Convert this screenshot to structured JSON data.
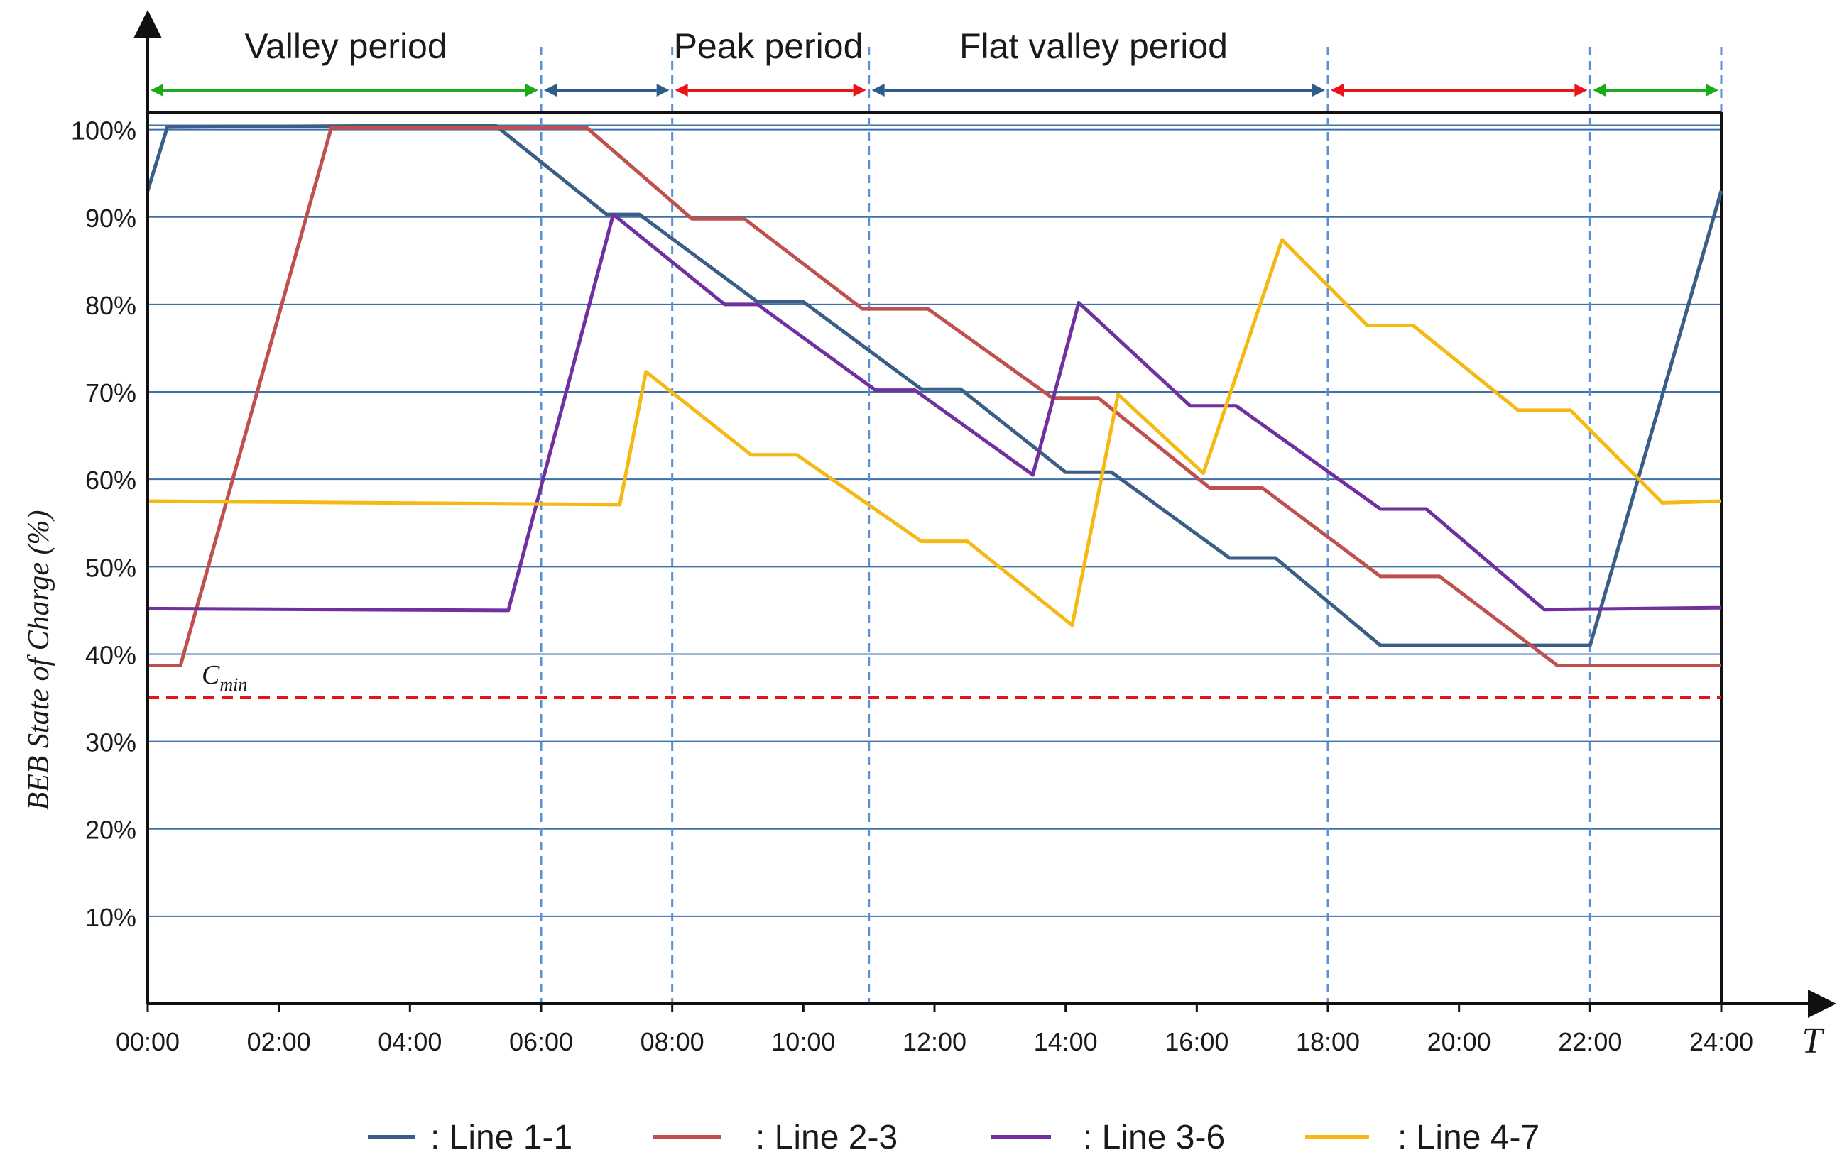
{
  "chart_data": {
    "type": "line",
    "xlabel": "T",
    "ylabel": "BEB State of Charge (%)",
    "x_range_hours": [
      0,
      24
    ],
    "y_range_percent": [
      0,
      102
    ],
    "x_ticks": [
      "00:00",
      "02:00",
      "04:00",
      "06:00",
      "08:00",
      "10:00",
      "12:00",
      "14:00",
      "16:00",
      "18:00",
      "20:00",
      "22:00",
      "24:00"
    ],
    "y_ticks": [
      {
        "value": 10,
        "label": "10%"
      },
      {
        "value": 20,
        "label": "20%"
      },
      {
        "value": 30,
        "label": "30%"
      },
      {
        "value": 40,
        "label": "40%"
      },
      {
        "value": 50,
        "label": "50%"
      },
      {
        "value": 60,
        "label": "60%"
      },
      {
        "value": 70,
        "label": "70%"
      },
      {
        "value": 80,
        "label": "80%"
      },
      {
        "value": 90,
        "label": "90%"
      },
      {
        "value": 100,
        "label": "100%"
      }
    ],
    "extra_gridline_percent": 100.5,
    "period_boundaries_hours": [
      6,
      8,
      11,
      18,
      22,
      24
    ],
    "periods": [
      {
        "label": "Valley period",
        "start": 0,
        "end": 6,
        "arrow_color": "#1aaa1a"
      },
      {
        "label": "",
        "start": 6,
        "end": 8,
        "arrow_color": "#2e5c8a"
      },
      {
        "label": "Peak period",
        "start": 8,
        "end": 11,
        "arrow_color": "#e8141a"
      },
      {
        "label": "Flat valley period",
        "start": 11,
        "end": 18,
        "arrow_color": "#2e5c8a"
      },
      {
        "label": "",
        "start": 18,
        "end": 22,
        "arrow_color": "#e8141a"
      },
      {
        "label": "",
        "start": 22,
        "end": 24,
        "arrow_color": "#1aaa1a"
      }
    ],
    "threshold": {
      "name": "C",
      "subscript": "min",
      "value": 35,
      "color": "#e8141a"
    },
    "series": [
      {
        "name": "Line 1-1",
        "legend_label": ": Line 1-1",
        "color": "#3b5e86",
        "points": [
          [
            0,
            93
          ],
          [
            0.3,
            100.3
          ],
          [
            5.3,
            100.5
          ],
          [
            7,
            90.3
          ],
          [
            7.5,
            90.3
          ],
          [
            9.3,
            80.3
          ],
          [
            10,
            80.3
          ],
          [
            11.8,
            70.3
          ],
          [
            12.4,
            70.3
          ],
          [
            14,
            60.8
          ],
          [
            14.7,
            60.8
          ],
          [
            16.5,
            51
          ],
          [
            17.2,
            51
          ],
          [
            18.8,
            41
          ],
          [
            22,
            41
          ],
          [
            24,
            93
          ]
        ]
      },
      {
        "name": "Line 2-3",
        "legend_label": ": Line 2-3",
        "color": "#c0504d",
        "points": [
          [
            0,
            38.7
          ],
          [
            0.5,
            38.7
          ],
          [
            2.8,
            100.2
          ],
          [
            6.7,
            100.2
          ],
          [
            8.3,
            89.8
          ],
          [
            9.1,
            89.8
          ],
          [
            10.9,
            79.5
          ],
          [
            11.9,
            79.5
          ],
          [
            13.8,
            69.3
          ],
          [
            14.5,
            69.3
          ],
          [
            16.2,
            59
          ],
          [
            17,
            59
          ],
          [
            18.8,
            48.9
          ],
          [
            19.7,
            48.9
          ],
          [
            21.5,
            38.7
          ],
          [
            24,
            38.7
          ]
        ]
      },
      {
        "name": "Line 3-6",
        "legend_label": ": Line 3-6",
        "color": "#7030a0",
        "points": [
          [
            0,
            45.2
          ],
          [
            5.5,
            45
          ],
          [
            7.1,
            90.3
          ],
          [
            8.8,
            80
          ],
          [
            9.3,
            80
          ],
          [
            11.1,
            70.2
          ],
          [
            11.7,
            70.2
          ],
          [
            13.5,
            60.5
          ],
          [
            14.2,
            80.2
          ],
          [
            15.9,
            68.4
          ],
          [
            16.6,
            68.4
          ],
          [
            18.8,
            56.6
          ],
          [
            19.5,
            56.6
          ],
          [
            21.3,
            45.1
          ],
          [
            24,
            45.3
          ]
        ]
      },
      {
        "name": "Line 4-7",
        "legend_label": ": Line 4-7",
        "color": "#f5b914",
        "points": [
          [
            0,
            57.5
          ],
          [
            7.2,
            57.1
          ],
          [
            7.6,
            72.3
          ],
          [
            9.2,
            62.8
          ],
          [
            9.9,
            62.8
          ],
          [
            11.8,
            52.9
          ],
          [
            12.5,
            52.9
          ],
          [
            14.1,
            43.3
          ],
          [
            14.8,
            69.7
          ],
          [
            16.1,
            60.7
          ],
          [
            17.3,
            87.4
          ],
          [
            18.6,
            77.6
          ],
          [
            19.3,
            77.6
          ],
          [
            20.9,
            67.9
          ],
          [
            21.7,
            67.9
          ],
          [
            23.1,
            57.3
          ],
          [
            24,
            57.5
          ]
        ]
      }
    ]
  }
}
